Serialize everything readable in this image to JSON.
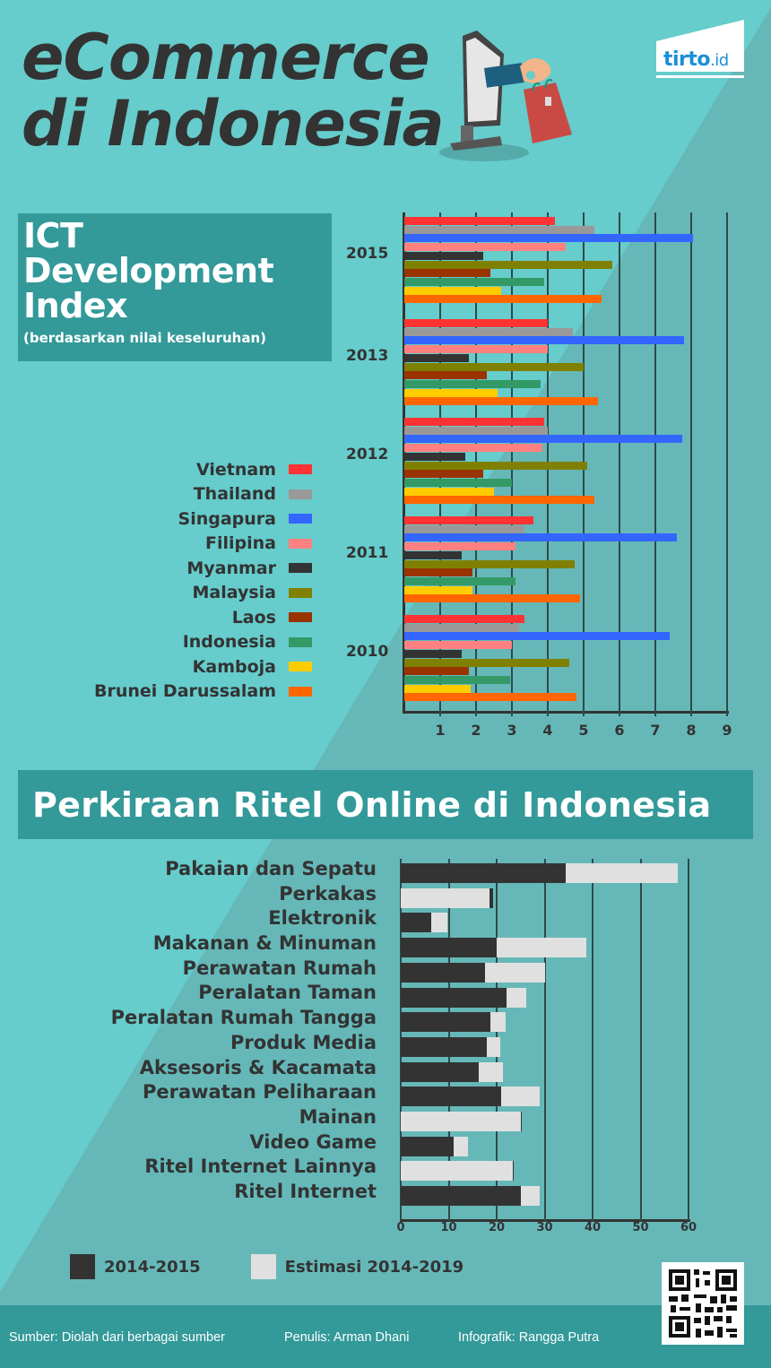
{
  "header": {
    "title_line1": "eCommerce",
    "title_line2": "di Indonesia",
    "logo": {
      "brand": "tirto",
      "suffix": ".id",
      "color": "#1a8fd6"
    },
    "illustration": "monitor-hand-shopping-bag-icon"
  },
  "ict": {
    "title": "ICT Development Index",
    "title_lines": [
      "ICT",
      "Development",
      "Index"
    ],
    "subtitle": "(berdasarkan nilai keseluruhan)",
    "years": [
      "2015",
      "2013",
      "2012",
      "2011",
      "2010"
    ],
    "legend": [
      {
        "label": "Vietnam",
        "color": "#ff3333"
      },
      {
        "label": "Thailand",
        "color": "#999999"
      },
      {
        "label": "Singapura",
        "color": "#3366ff"
      },
      {
        "label": "Filipina",
        "color": "#ff8080"
      },
      {
        "label": "Myanmar",
        "color": "#333333"
      },
      {
        "label": "Malaysia",
        "color": "#808000"
      },
      {
        "label": "Laos",
        "color": "#993300"
      },
      {
        "label": "Indonesia",
        "color": "#339966"
      },
      {
        "label": "Kamboja",
        "color": "#ffcc00"
      },
      {
        "label": "Brunei Darussalam",
        "color": "#ff6600"
      }
    ],
    "x_ticks": [
      "1",
      "2",
      "3",
      "4",
      "5",
      "6",
      "7",
      "8",
      "9"
    ]
  },
  "ritel": {
    "title": "Perkiraan Ritel Online di Indonesia",
    "x_ticks": [
      "0",
      "10",
      "20",
      "30",
      "40",
      "50",
      "60"
    ],
    "legend": [
      {
        "label": "2014-2015",
        "color": "#333333"
      },
      {
        "label": "Estimasi 2014-2019",
        "color": "#e0e0e0"
      }
    ]
  },
  "footer": {
    "source": "Sumber: Diolah dari berbagai sumber",
    "writer": "Penulis: Arman Dhani",
    "designer": "Infografik: Rangga Putra",
    "qr": "qr-code-icon"
  },
  "colors": {
    "background": "#66cccc",
    "background_shade": "#66b8b8",
    "banner": "#339999",
    "text_dark": "#333333"
  },
  "chart_data": [
    {
      "type": "bar",
      "orientation": "horizontal",
      "title": "ICT Development Index (berdasarkan nilai keseluruhan)",
      "xlabel": "",
      "ylabel": "",
      "xlim": [
        0,
        9
      ],
      "grid": true,
      "legend_position": "left",
      "categories": [
        "2015",
        "2013",
        "2012",
        "2011",
        "2010"
      ],
      "series": [
        {
          "name": "Vietnam",
          "color": "#ff3333",
          "values": [
            4.2,
            4.0,
            3.9,
            3.6,
            3.35
          ]
        },
        {
          "name": "Thailand",
          "color": "#999999",
          "values": [
            5.3,
            4.7,
            4.0,
            3.35,
            3.2
          ]
        },
        {
          "name": "Singapura",
          "color": "#3366ff",
          "values": [
            8.05,
            7.8,
            7.75,
            7.6,
            7.4
          ]
        },
        {
          "name": "Filipina",
          "color": "#ff8080",
          "values": [
            4.5,
            4.0,
            3.85,
            3.1,
            3.0
          ]
        },
        {
          "name": "Myanmar",
          "color": "#333333",
          "values": [
            2.2,
            1.8,
            1.7,
            1.6,
            1.6
          ]
        },
        {
          "name": "Malaysia",
          "color": "#808000",
          "values": [
            5.8,
            5.0,
            5.1,
            4.75,
            4.6
          ]
        },
        {
          "name": "Laos",
          "color": "#993300",
          "values": [
            2.4,
            2.3,
            2.2,
            1.9,
            1.8
          ]
        },
        {
          "name": "Indonesia",
          "color": "#339966",
          "values": [
            3.9,
            3.8,
            3.0,
            3.1,
            2.95
          ]
        },
        {
          "name": "Kamboja",
          "color": "#ffcc00",
          "values": [
            2.7,
            2.6,
            2.5,
            1.9,
            1.85
          ]
        },
        {
          "name": "Brunei Darussalam",
          "color": "#ff6600",
          "values": [
            5.5,
            5.4,
            5.3,
            4.9,
            4.8
          ]
        }
      ]
    },
    {
      "type": "bar",
      "orientation": "horizontal",
      "title": "Perkiraan Ritel Online di Indonesia",
      "xlabel": "",
      "ylabel": "",
      "xlim": [
        0,
        60
      ],
      "grid": true,
      "legend_position": "bottom",
      "categories": [
        "Pakaian dan Sepatu",
        "Perkakas",
        "Elektronik",
        "Makanan & Minuman",
        "Perawatan Rumah",
        "Peralatan Taman",
        "Peralatan Rumah Tangga",
        "Produk Media",
        "Aksesoris & Kacamata",
        "Perawatan Peliharaan",
        "Mainan",
        "Video Game",
        "Ritel Internet Lainnya",
        "Ritel Internet"
      ],
      "series": [
        {
          "name": "2014-2015",
          "color": "#333333",
          "values": [
            34.4,
            19.3,
            6.3,
            20.0,
            17.6,
            22.0,
            18.6,
            18.0,
            16.3,
            21.0,
            25.3,
            11.0,
            23.6,
            25.0
          ]
        },
        {
          "name": "Estimasi 2014-2019",
          "color": "#e0e0e0",
          "values": [
            57.8,
            18.5,
            9.7,
            38.7,
            30.1,
            26.2,
            21.9,
            20.8,
            21.3,
            28.9,
            25.0,
            14.0,
            23.3,
            29.0
          ]
        }
      ]
    }
  ]
}
